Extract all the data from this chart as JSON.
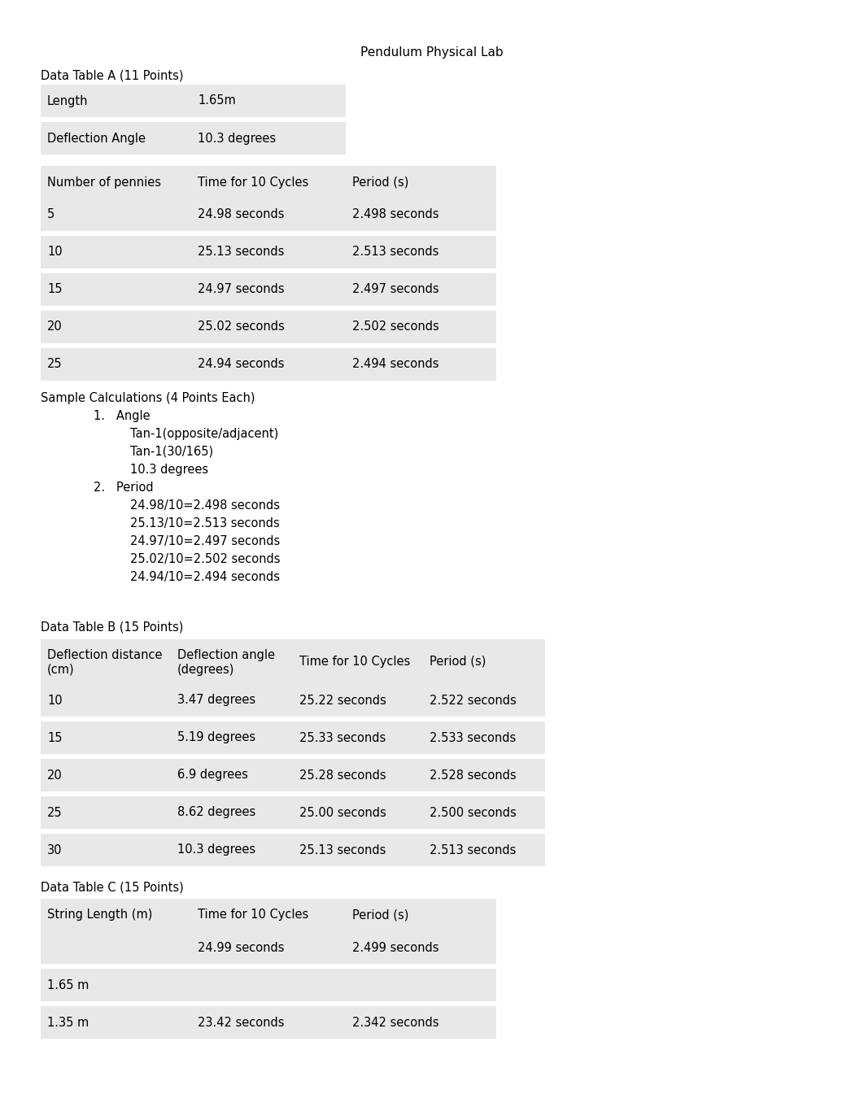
{
  "title": "Pendulum Physical Lab",
  "bg_color": "#ffffff",
  "cell_bg": "#e8e8e8",
  "tableA_label": "Data Table A (11 Points)",
  "tableA_header": [
    "Number of pennies",
    "Time for 10 Cycles",
    "Period (s)"
  ],
  "tableA_data": [
    [
      "5",
      "24.98 seconds",
      "2.498 seconds"
    ],
    [
      "10",
      "25.13 seconds",
      "2.513 seconds"
    ],
    [
      "15",
      "24.97 seconds",
      "2.497 seconds"
    ],
    [
      "20",
      "25.02 seconds",
      "2.502 seconds"
    ],
    [
      "25",
      "24.94 seconds",
      "2.494 seconds"
    ]
  ],
  "calc_label": "Sample Calculations (4 Points Each)",
  "calc_lines": [
    [
      "1.",
      "Angle",
      1
    ],
    [
      "",
      "Tan-1(opposite/adjacent)",
      2
    ],
    [
      "",
      "Tan-1(30/165)",
      2
    ],
    [
      "",
      "10.3 degrees",
      2
    ],
    [
      "2.",
      "Period",
      1
    ],
    [
      "",
      "24.98/10=2.498 seconds",
      2
    ],
    [
      "",
      "25.13/10=2.513 seconds",
      2
    ],
    [
      "",
      "24.97/10=2.497 seconds",
      2
    ],
    [
      "",
      "25.02/10=2.502 seconds",
      2
    ],
    [
      "",
      "24.94/10=2.494 seconds",
      2
    ]
  ],
  "tableB_label": "Data Table B (15 Points)",
  "tableB_header": [
    "Deflection distance\n(cm)",
    "Deflection angle\n(degrees)",
    "Time for 10 Cycles",
    "Period (s)"
  ],
  "tableB_data": [
    [
      "10",
      "3.47 degrees",
      "25.22 seconds",
      "2.522 seconds"
    ],
    [
      "15",
      "5.19 degrees",
      "25.33 seconds",
      "2.533 seconds"
    ],
    [
      "20",
      "6.9 degrees",
      "25.28 seconds",
      "2.528 seconds"
    ],
    [
      "25",
      "8.62 degrees",
      "25.00 seconds",
      "2.500 seconds"
    ],
    [
      "30",
      "10.3 degrees",
      "25.13 seconds",
      "2.513 seconds"
    ]
  ],
  "tableC_label": "Data Table C (15 Points)",
  "tableC_header": [
    "String Length (m)",
    "Time for 10 Cycles",
    "Period (s)"
  ],
  "tableC_data": [
    [
      "",
      "24.99 seconds",
      "2.499 seconds"
    ],
    [
      "1.65 m",
      "",
      ""
    ],
    [
      "1.35 m",
      "23.42 seconds",
      "2.342 seconds"
    ]
  ]
}
